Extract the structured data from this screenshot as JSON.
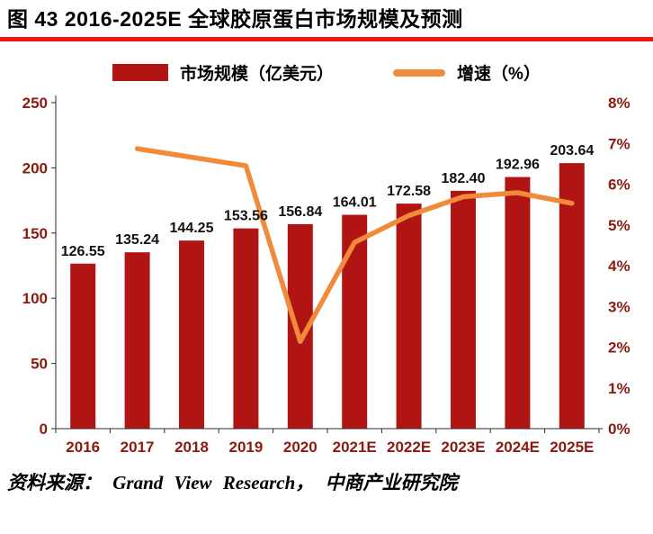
{
  "header": {
    "title": "图 43 2016-2025E 全球胶原蛋白市场规模及预测"
  },
  "legend": {
    "bar_label": "市场规模（亿美元）",
    "line_label": "增速（%）"
  },
  "footer": {
    "source": "资料来源： Grand View Research， 中商产业研究院"
  },
  "colors": {
    "title_underline": "#ee1410",
    "bar": "#b01513",
    "line": "#ef8b3b",
    "axis_labels": "#8b1a10",
    "data_labels": "#111111"
  },
  "chart_data": {
    "type": "bar",
    "title": "图 43 2016-2025E 全球胶原蛋白市场规模及预测",
    "categories": [
      "2016",
      "2017",
      "2018",
      "2019",
      "2020",
      "2021E",
      "2022E",
      "2023E",
      "2024E",
      "2025E"
    ],
    "series": [
      {
        "name": "市场规模（亿美元）",
        "type": "bar",
        "axis": "left",
        "color": "#b01513",
        "values": [
          126.55,
          135.24,
          144.25,
          153.56,
          156.84,
          164.01,
          172.58,
          182.4,
          192.96,
          203.64
        ]
      },
      {
        "name": "增速（%）",
        "type": "line",
        "axis": "right",
        "color": "#ef8b3b",
        "values": [
          null,
          6.87,
          6.66,
          6.45,
          2.14,
          4.57,
          5.23,
          5.69,
          5.79,
          5.53
        ]
      }
    ],
    "bar_data_labels": [
      "126.55",
      "135.24",
      "144.25",
      "153.56",
      "156.84",
      "164.01",
      "172.58",
      "182.40",
      "192.96",
      "203.64"
    ],
    "left_axis": {
      "min": 0,
      "max": 250,
      "ticks": [
        0,
        50,
        100,
        150,
        200,
        250
      ]
    },
    "right_axis": {
      "min": 0,
      "max": 8,
      "tick_labels": [
        "0%",
        "1%",
        "2%",
        "3%",
        "4%",
        "5%",
        "6%",
        "7%",
        "8%"
      ]
    },
    "grid": false,
    "legend_position": "top-center"
  }
}
